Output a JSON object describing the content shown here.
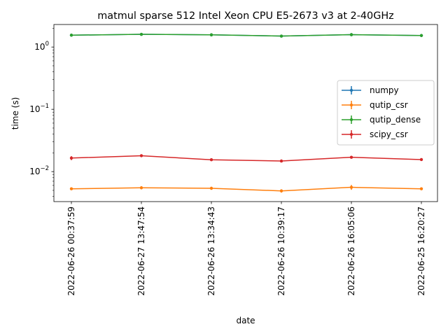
{
  "chart_data": {
    "type": "line",
    "title": "matmul sparse 512 Intel Xeon CPU E5-2673 v3 at 2-40GHz",
    "xlabel": "date",
    "ylabel": "time (s)",
    "yscale": "log",
    "ylim": [
      0.0033,
      2.3
    ],
    "y_ticks": [
      {
        "value": 0.01,
        "label": "10^-2"
      },
      {
        "value": 0.1,
        "label": "10^-1"
      },
      {
        "value": 1,
        "label": "10^0"
      }
    ],
    "categories": [
      "2022-06-26 00:37:59",
      "2022-06-27 13:47:54",
      "2022-06-26 13:34:43",
      "2022-06-26 10:39:17",
      "2022-06-26 16:05:06",
      "2022-06-25 16:20:27"
    ],
    "legend_position": "center-right",
    "grid": false,
    "series": [
      {
        "name": "numpy",
        "color": "#1f77b4",
        "values": [
          1.55,
          1.6,
          1.57,
          1.5,
          1.58,
          1.53
        ],
        "errors": [
          0.04,
          0.05,
          0.04,
          0.04,
          0.05,
          0.04
        ]
      },
      {
        "name": "qutip_csr",
        "color": "#ff7f0e",
        "values": [
          0.0053,
          0.0055,
          0.0054,
          0.0049,
          0.0056,
          0.0053
        ],
        "errors": [
          0.0002,
          0.0003,
          0.0003,
          0.0003,
          0.0005,
          0.0002
        ]
      },
      {
        "name": "qutip_dense",
        "color": "#2ca02c",
        "values": [
          1.55,
          1.6,
          1.57,
          1.5,
          1.58,
          1.53
        ],
        "errors": [
          0.04,
          0.05,
          0.04,
          0.04,
          0.05,
          0.04
        ]
      },
      {
        "name": "scipy_csr",
        "color": "#d62728",
        "values": [
          0.0165,
          0.018,
          0.0155,
          0.0148,
          0.017,
          0.0156
        ],
        "errors": [
          0.0012,
          0.0008,
          0.0006,
          0.0005,
          0.0007,
          0.0005
        ]
      }
    ]
  }
}
